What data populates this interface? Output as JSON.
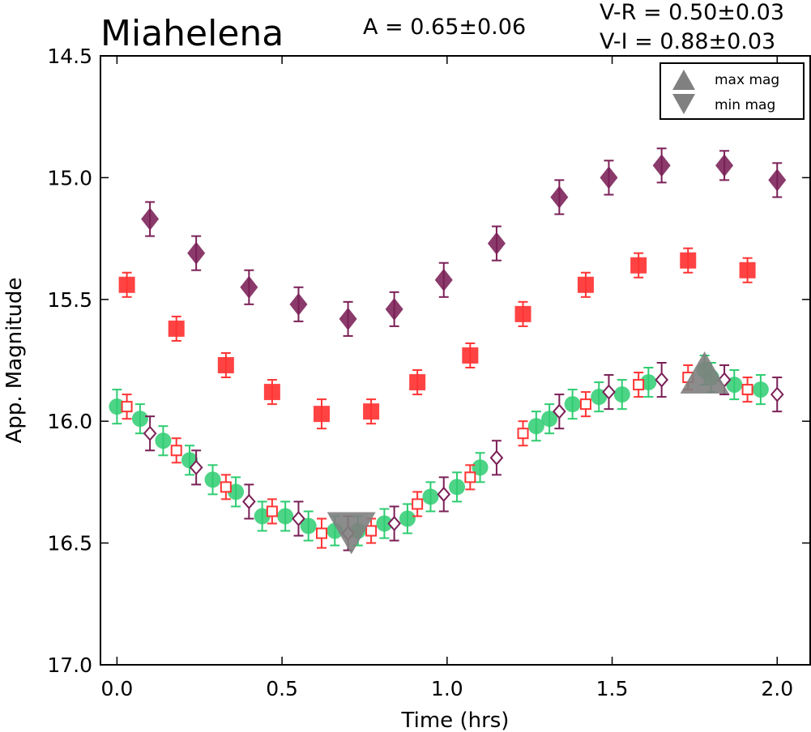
{
  "chart_data": {
    "type": "scatter",
    "title": "Miahelena",
    "xlabel": "Time (hrs)",
    "ylabel": "App. Magnitude",
    "xlim": [
      -0.05,
      2.1
    ],
    "ylim": [
      17.0,
      14.5
    ],
    "y_inverted": true,
    "x_ticks": [
      0.0,
      0.5,
      1.0,
      1.5,
      2.0
    ],
    "x_tick_labels": [
      "0.0",
      "0.5",
      "1.0",
      "1.5",
      "2.0"
    ],
    "y_ticks": [
      14.5,
      15.0,
      15.5,
      16.0,
      16.5,
      17.0
    ],
    "y_tick_labels": [
      "14.5",
      "15.0",
      "15.5",
      "16.0",
      "16.5",
      "17.0"
    ],
    "annotations": {
      "amplitude": "A  = 0.65±0.06",
      "v_r": "V-R = 0.50±0.03",
      "v_i": "V-I  = 0.88±0.03"
    },
    "legend": {
      "placement": "top-right",
      "entries": [
        "max mag",
        "min mag"
      ]
    },
    "colors": {
      "green": "#2ecc71",
      "red": "#ff3333",
      "purple": "#7a1f56",
      "gray": "#808080"
    },
    "series": [
      {
        "marker": "diamond-filled",
        "color": "#7a1f56",
        "x": [
          0.1,
          0.24,
          0.4,
          0.55,
          0.7,
          0.84,
          0.99,
          1.15,
          1.34,
          1.49,
          1.65,
          1.84,
          2.0
        ],
        "y": [
          15.17,
          15.31,
          15.45,
          15.52,
          15.58,
          15.54,
          15.42,
          15.27,
          15.08,
          15.0,
          14.95,
          14.95,
          15.01
        ],
        "err": [
          0.07,
          0.07,
          0.07,
          0.07,
          0.07,
          0.07,
          0.07,
          0.07,
          0.07,
          0.07,
          0.07,
          0.06,
          0.07
        ]
      },
      {
        "marker": "square-filled",
        "color": "#ff3333",
        "x": [
          0.03,
          0.18,
          0.33,
          0.47,
          0.62,
          0.77,
          0.91,
          1.07,
          1.23,
          1.42,
          1.58,
          1.73,
          1.91
        ],
        "y": [
          15.44,
          15.62,
          15.77,
          15.88,
          15.97,
          15.96,
          15.84,
          15.73,
          15.56,
          15.44,
          15.36,
          15.34,
          15.38
        ],
        "err": [
          0.05,
          0.05,
          0.05,
          0.05,
          0.06,
          0.05,
          0.05,
          0.05,
          0.05,
          0.05,
          0.05,
          0.05,
          0.05
        ]
      },
      {
        "marker": "circle-filled",
        "color": "#2ecc71",
        "x": [
          0.0,
          0.07,
          0.14,
          0.22,
          0.29,
          0.36,
          0.44,
          0.51,
          0.58,
          0.66,
          0.73,
          0.81,
          0.88,
          0.95,
          1.03,
          1.1,
          1.27,
          1.31,
          1.38,
          1.46,
          1.53,
          1.61,
          1.78,
          1.8,
          1.87,
          1.95
        ],
        "y": [
          15.94,
          15.99,
          16.08,
          16.16,
          16.24,
          16.29,
          16.39,
          16.39,
          16.43,
          16.45,
          16.45,
          16.42,
          16.4,
          16.31,
          16.27,
          16.19,
          16.02,
          15.99,
          15.93,
          15.9,
          15.89,
          15.84,
          15.79,
          15.82,
          15.85,
          15.87
        ],
        "err": [
          0.07,
          0.06,
          0.06,
          0.06,
          0.06,
          0.06,
          0.06,
          0.06,
          0.06,
          0.06,
          0.06,
          0.06,
          0.06,
          0.06,
          0.06,
          0.06,
          0.06,
          0.06,
          0.06,
          0.06,
          0.06,
          0.06,
          0.06,
          0.06,
          0.06,
          0.06
        ]
      },
      {
        "marker": "square-open",
        "color": "#ff3333",
        "x": [
          0.03,
          0.18,
          0.33,
          0.47,
          0.62,
          0.77,
          0.91,
          1.07,
          1.23,
          1.42,
          1.58,
          1.73,
          1.91
        ],
        "y": [
          15.94,
          16.12,
          16.27,
          16.37,
          16.46,
          16.45,
          16.34,
          16.23,
          16.05,
          15.93,
          15.85,
          15.82,
          15.87
        ],
        "err": [
          0.05,
          0.05,
          0.05,
          0.05,
          0.06,
          0.05,
          0.05,
          0.05,
          0.05,
          0.05,
          0.05,
          0.05,
          0.05
        ]
      },
      {
        "marker": "diamond-open",
        "color": "#7a1f56",
        "x": [
          0.1,
          0.24,
          0.4,
          0.55,
          0.7,
          0.84,
          0.99,
          1.15,
          1.34,
          1.49,
          1.65,
          1.84,
          2.0
        ],
        "y": [
          16.05,
          16.19,
          16.33,
          16.4,
          16.46,
          16.42,
          16.3,
          16.15,
          15.96,
          15.88,
          15.83,
          15.83,
          15.89
        ],
        "err": [
          0.07,
          0.07,
          0.07,
          0.07,
          0.07,
          0.07,
          0.07,
          0.07,
          0.07,
          0.07,
          0.07,
          0.06,
          0.07
        ]
      },
      {
        "marker": "triangle-up",
        "color": "#808080",
        "label": "max mag",
        "x": [
          1.78
        ],
        "y": [
          15.82
        ]
      },
      {
        "marker": "triangle-down",
        "color": "#808080",
        "label": "min mag",
        "x": [
          0.71
        ],
        "y": [
          16.44
        ]
      }
    ]
  }
}
